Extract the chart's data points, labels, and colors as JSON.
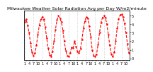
{
  "title": "Milwaukee Weather Solar Radiation Avg per Day W/m2/minute",
  "line_color": "#ff0000",
  "line_style": "--",
  "line_width": 0.8,
  "marker": ".",
  "marker_size": 1.5,
  "background_color": "#ffffff",
  "grid_color": "#bbbbbb",
  "ylim": [
    -20,
    560
  ],
  "yticks": [
    0,
    100,
    200,
    300,
    400,
    500
  ],
  "ytick_labels": [
    "0",
    "1",
    "2",
    "3",
    "4",
    "5"
  ],
  "values": [
    430,
    460,
    390,
    300,
    180,
    70,
    30,
    60,
    150,
    280,
    390,
    460,
    490,
    460,
    370,
    240,
    120,
    40,
    25,
    80,
    200,
    340,
    450,
    500,
    470,
    430,
    330,
    200,
    90,
    30,
    20,
    60,
    130,
    120,
    200,
    140,
    80,
    60,
    110,
    220,
    350,
    440,
    490,
    470,
    380,
    250,
    100,
    30,
    20,
    50,
    160,
    300,
    420,
    480,
    500,
    480,
    400,
    280,
    150,
    50,
    20,
    70,
    200,
    350,
    460,
    510,
    520,
    490,
    410,
    300,
    170,
    60
  ],
  "n_gridlines": 12,
  "gridline_step": 6,
  "title_fontsize": 4.5,
  "tick_fontsize": 3.5,
  "right_ytick_fontsize": 3.5
}
